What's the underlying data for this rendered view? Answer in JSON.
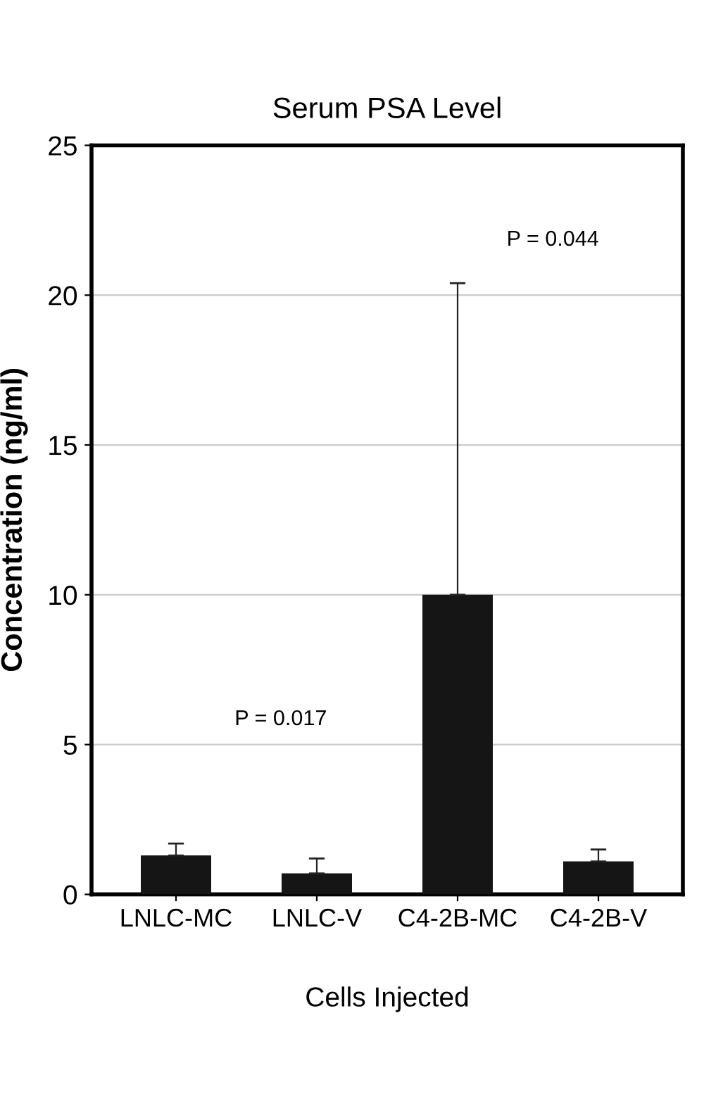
{
  "chart_data": {
    "type": "bar",
    "title": "Serum PSA Level",
    "xlabel": "Cells Injected",
    "ylabel": "Concentration (ng/ml)",
    "categories": [
      "LNLC-MC",
      "LNLC-V",
      "C4-2B-MC",
      "C4-2B-V"
    ],
    "values": [
      1.3,
      0.7,
      10,
      1.1
    ],
    "errors": [
      [
        1.3,
        1.7
      ],
      [
        0.7,
        1.2
      ],
      [
        10,
        20.4
      ],
      [
        1.1,
        1.5
      ]
    ],
    "color": "#151515",
    "ylim": [
      0,
      25
    ],
    "yticks": [
      0,
      5,
      10,
      15,
      20,
      25
    ],
    "grid": "y",
    "annotations": [
      "P = 0.017",
      "P = 0.044"
    ]
  }
}
